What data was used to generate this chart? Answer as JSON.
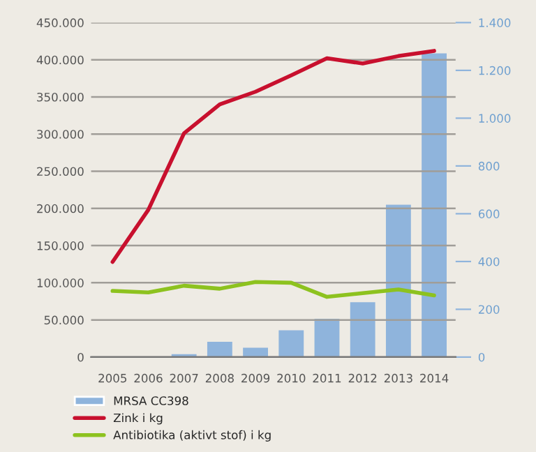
{
  "chart_data": {
    "type": "bar",
    "categories": [
      "2005",
      "2006",
      "2007",
      "2008",
      "2009",
      "2010",
      "2011",
      "2012",
      "2013",
      "2014"
    ],
    "series": [
      {
        "name": "MRSA CC398",
        "axis": "y2",
        "color": "#8fb4dc",
        "values": [
          null,
          null,
          12,
          64,
          39,
          112,
          160,
          230,
          638,
          1271
        ]
      },
      {
        "name": "Zink i kg",
        "type": "line",
        "axis": "y",
        "color": "#c8102e",
        "values": [
          128000,
          198000,
          301000,
          340000,
          357000,
          379000,
          402000,
          395000,
          405000,
          412000
        ]
      },
      {
        "name": "Antibiotika (aktivt stof) i kg",
        "type": "line",
        "axis": "y",
        "color": "#8dc21f",
        "values": [
          89000,
          87000,
          96000,
          92000,
          101000,
          100000,
          81000,
          86000,
          91000,
          83000
        ]
      }
    ],
    "ylim": [
      0,
      450000
    ],
    "yticks": [
      0,
      {
        "value": 50000,
        "label": "50.000"
      },
      {
        "value": 100000,
        "label": "100.000"
      },
      {
        "value": 150000,
        "label": "150.000"
      },
      {
        "value": 200000,
        "label": "200.000"
      },
      {
        "value": 250000,
        "label": "250.000"
      },
      {
        "value": 300000,
        "label": "300.000"
      },
      {
        "value": 350000,
        "label": "350.000"
      },
      {
        "value": 400000,
        "label": "400.000"
      },
      {
        "value": 450000,
        "label": "450.000"
      }
    ],
    "y2lim": [
      0,
      1400
    ],
    "y2ticks": [
      0,
      200,
      400,
      600,
      800,
      {
        "value": 1000,
        "label": "1.000"
      },
      {
        "value": 1200,
        "label": "1.200"
      },
      {
        "value": 1400,
        "label": "1.400"
      }
    ],
    "grid": "y",
    "legend": "bottom",
    "line_style": "solid",
    "marker": "none"
  }
}
